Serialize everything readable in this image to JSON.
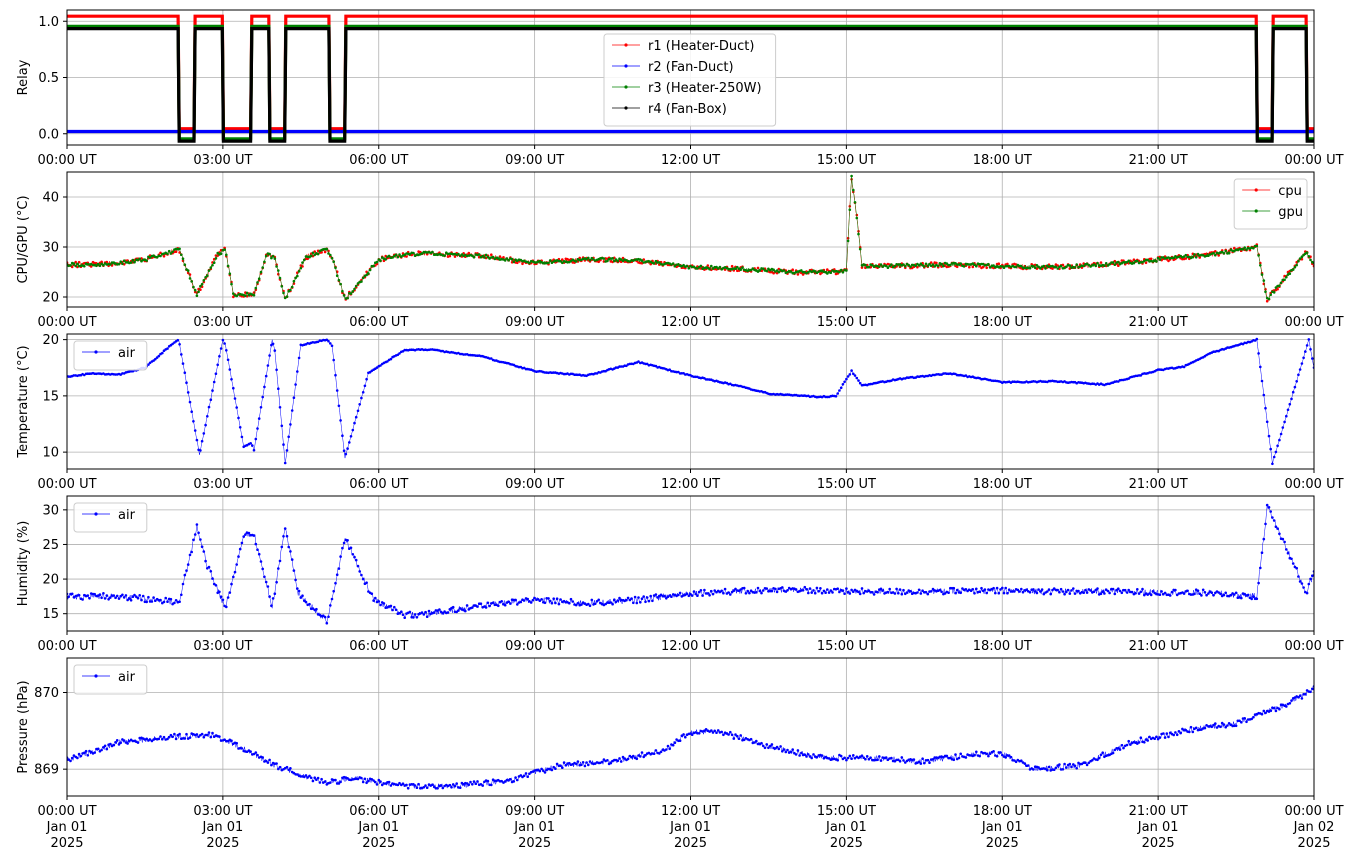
{
  "chart_data": [
    {
      "type": "line",
      "ylabel": "Relay",
      "ylim": [
        -0.1,
        1.1
      ],
      "yticks": [
        0.0,
        0.5,
        1.0
      ],
      "ytick_labels": [
        "0.0",
        "0.5",
        "1.0"
      ],
      "xticks": [
        "00:00 UT",
        "03:00 UT",
        "06:00 UT",
        "09:00 UT",
        "12:00 UT",
        "15:00 UT",
        "18:00 UT",
        "21:00 UT",
        "00:00 UT"
      ],
      "grid": true,
      "legend_position": "upper-center",
      "series": [
        {
          "name": "r1 (Heater-Duct)",
          "color": "#ff0000",
          "offset": 0.045,
          "off_intervals_hours": [
            [
              2.15,
              2.45
            ],
            [
              3.0,
              3.55
            ],
            [
              3.9,
              4.2
            ],
            [
              5.05,
              5.35
            ],
            [
              22.9,
              23.2
            ],
            [
              23.85,
              24.0
            ]
          ]
        },
        {
          "name": "r2 (Fan-Duct)",
          "color": "#0000ff",
          "offset": 0.02,
          "off_intervals_hours": [
            [
              0,
              24
            ]
          ]
        },
        {
          "name": "r3 (Heater-250W)",
          "color": "#008000",
          "offset": -0.045,
          "off_intervals_hours": [
            [
              2.15,
              2.45
            ],
            [
              3.0,
              3.55
            ],
            [
              3.9,
              4.2
            ],
            [
              5.05,
              5.35
            ],
            [
              22.9,
              23.2
            ],
            [
              23.85,
              24.0
            ]
          ]
        },
        {
          "name": "r4 (Fan-Box)",
          "color": "#000000",
          "offset": -0.065,
          "off_intervals_hours": [
            [
              2.15,
              2.45
            ],
            [
              3.0,
              3.55
            ],
            [
              3.9,
              4.2
            ],
            [
              5.05,
              5.35
            ],
            [
              22.9,
              23.2
            ],
            [
              23.85,
              24.0
            ]
          ]
        }
      ]
    },
    {
      "type": "line",
      "ylabel": "CPU/GPU (°C)",
      "ylim": [
        18,
        45
      ],
      "yticks": [
        20,
        30,
        40
      ],
      "ytick_labels": [
        "20",
        "30",
        "40"
      ],
      "xticks": [
        "00:00 UT",
        "03:00 UT",
        "06:00 UT",
        "09:00 UT",
        "12:00 UT",
        "15:00 UT",
        "18:00 UT",
        "21:00 UT",
        "00:00 UT"
      ],
      "grid": true,
      "legend_position": "upper-right",
      "series": [
        {
          "name": "cpu",
          "color": "#ff0000",
          "noise": 0.5
        },
        {
          "name": "gpu",
          "color": "#008000",
          "noise": 0.35
        }
      ],
      "x_hours": [
        0,
        0.5,
        1.0,
        1.5,
        2.0,
        2.15,
        2.5,
        2.9,
        3.05,
        3.2,
        3.6,
        3.85,
        4.0,
        4.2,
        4.6,
        5.0,
        5.1,
        5.35,
        6.0,
        6.5,
        7.0,
        8.0,
        9.0,
        10.0,
        11.0,
        12.0,
        13.0,
        14.0,
        14.7,
        15.0,
        15.1,
        15.2,
        15.3,
        16.0,
        17.0,
        18.0,
        19.0,
        20.0,
        21.0,
        22.0,
        22.9,
        23.1,
        23.85,
        24.0
      ],
      "y_values": [
        26.5,
        26.5,
        26.8,
        27.5,
        29.0,
        29.8,
        20.5,
        28.5,
        29.5,
        20.5,
        20.5,
        28.5,
        27.8,
        19.5,
        28.0,
        29.5,
        28.0,
        19.5,
        27.5,
        28.5,
        28.7,
        28.2,
        26.8,
        27.5,
        27.3,
        26.0,
        25.6,
        25.0,
        25.0,
        25.2,
        44.0,
        36.0,
        26.2,
        26.2,
        26.5,
        26.2,
        26.0,
        26.5,
        27.5,
        28.5,
        30.0,
        19.5,
        29.0,
        26.5
      ]
    },
    {
      "type": "line",
      "ylabel": "Temperature (°C)",
      "ylim": [
        8.5,
        20.5
      ],
      "yticks": [
        10,
        15,
        20
      ],
      "ytick_labels": [
        "10",
        "15",
        "20"
      ],
      "xticks": [
        "00:00 UT",
        "03:00 UT",
        "06:00 UT",
        "09:00 UT",
        "12:00 UT",
        "15:00 UT",
        "18:00 UT",
        "21:00 UT",
        "00:00 UT"
      ],
      "grid": true,
      "legend_position": "upper-left",
      "series": [
        {
          "name": "air",
          "color": "#0000ff",
          "noise": 0.05
        }
      ],
      "x_hours": [
        0,
        0.5,
        1.0,
        1.5,
        2.0,
        2.15,
        2.55,
        3.0,
        3.05,
        3.4,
        3.55,
        3.6,
        3.95,
        4.0,
        4.2,
        4.5,
        5.0,
        5.1,
        5.35,
        5.8,
        6.5,
        7.0,
        8.0,
        9.0,
        10.0,
        11.0,
        12.0,
        13.0,
        13.5,
        14.5,
        14.8,
        15.1,
        15.3,
        16.0,
        17.0,
        18.0,
        19.0,
        20.0,
        21.0,
        21.5,
        22.0,
        22.9,
        23.2,
        23.9,
        24.0
      ],
      "y_values": [
        16.7,
        17.0,
        16.9,
        17.5,
        19.5,
        20.0,
        9.8,
        20.0,
        19.5,
        10.5,
        10.8,
        10.2,
        20.0,
        19.0,
        9.0,
        19.5,
        20.0,
        19.5,
        9.5,
        17.0,
        19.1,
        19.1,
        18.5,
        17.2,
        16.8,
        18.0,
        16.8,
        15.8,
        15.2,
        14.9,
        15.0,
        17.2,
        15.9,
        16.5,
        17.0,
        16.2,
        16.3,
        16.0,
        17.3,
        17.6,
        18.8,
        20.0,
        9.0,
        20.0,
        17.5
      ]
    },
    {
      "type": "line",
      "ylabel": "Humidity (%)",
      "ylim": [
        12.5,
        32
      ],
      "yticks": [
        15,
        20,
        25,
        30
      ],
      "ytick_labels": [
        "15",
        "20",
        "25",
        "30"
      ],
      "xticks": [
        "00:00 UT",
        "03:00 UT",
        "06:00 UT",
        "09:00 UT",
        "12:00 UT",
        "15:00 UT",
        "18:00 UT",
        "21:00 UT",
        "00:00 UT"
      ],
      "grid": true,
      "legend_position": "upper-left",
      "series": [
        {
          "name": "air",
          "color": "#0000ff",
          "noise": 0.45
        }
      ],
      "x_hours": [
        0,
        1.0,
        2.0,
        2.15,
        2.5,
        2.7,
        3.05,
        3.4,
        3.6,
        3.95,
        4.2,
        4.45,
        5.0,
        5.35,
        5.9,
        6.5,
        7.0,
        8.0,
        9.0,
        10.0,
        11.0,
        12.0,
        14.0,
        15.0,
        16.0,
        18.0,
        20.0,
        22.0,
        22.9,
        23.1,
        23.5,
        23.85,
        24.0
      ],
      "y_values": [
        17.5,
        17.5,
        16.8,
        16.5,
        27.5,
        22.0,
        15.8,
        26.5,
        26.5,
        16.0,
        27.5,
        18.0,
        13.8,
        26.0,
        17.0,
        14.8,
        15.0,
        16.2,
        17.0,
        16.5,
        17.0,
        18.0,
        18.5,
        18.2,
        18.2,
        18.3,
        18.2,
        18.0,
        17.5,
        30.5,
        24.0,
        18.0,
        21.0
      ]
    },
    {
      "type": "line",
      "ylabel": "Pressure (hPa)",
      "ylim": [
        868.65,
        870.45
      ],
      "yticks": [
        869,
        870
      ],
      "ytick_labels": [
        "869",
        "870"
      ],
      "xticks": [
        "00:00 UT",
        "03:00 UT",
        "06:00 UT",
        "09:00 UT",
        "12:00 UT",
        "15:00 UT",
        "18:00 UT",
        "21:00 UT",
        "00:00 UT"
      ],
      "xtick_dates": [
        "Jan 01",
        "Jan 01",
        "Jan 01",
        "Jan 01",
        "Jan 01",
        "Jan 01",
        "Jan 01",
        "Jan 01",
        "Jan 02"
      ],
      "xtick_years": [
        "2025",
        "2025",
        "2025",
        "2025",
        "2025",
        "2025",
        "2025",
        "2025",
        "2025"
      ],
      "grid": true,
      "legend_position": "upper-left",
      "series": [
        {
          "name": "air",
          "color": "#0000ff",
          "noise": 0.035
        }
      ],
      "x_hours": [
        0,
        1.0,
        2.0,
        2.8,
        3.3,
        4.0,
        4.7,
        5.0,
        5.5,
        6.5,
        7.5,
        8.5,
        9.5,
        10.5,
        11.5,
        12.0,
        12.5,
        13.5,
        14.5,
        15.5,
        16.5,
        17.5,
        18.0,
        18.6,
        19.5,
        20.5,
        21.5,
        22.5,
        23.5,
        24.0
      ],
      "y_values": [
        869.12,
        869.35,
        869.42,
        869.45,
        869.3,
        869.05,
        868.88,
        868.82,
        868.88,
        868.78,
        868.78,
        868.85,
        869.05,
        869.1,
        869.25,
        869.48,
        869.5,
        869.3,
        869.15,
        869.15,
        869.1,
        869.2,
        869.2,
        869.0,
        869.05,
        869.35,
        869.5,
        869.6,
        869.85,
        870.05
      ]
    }
  ]
}
